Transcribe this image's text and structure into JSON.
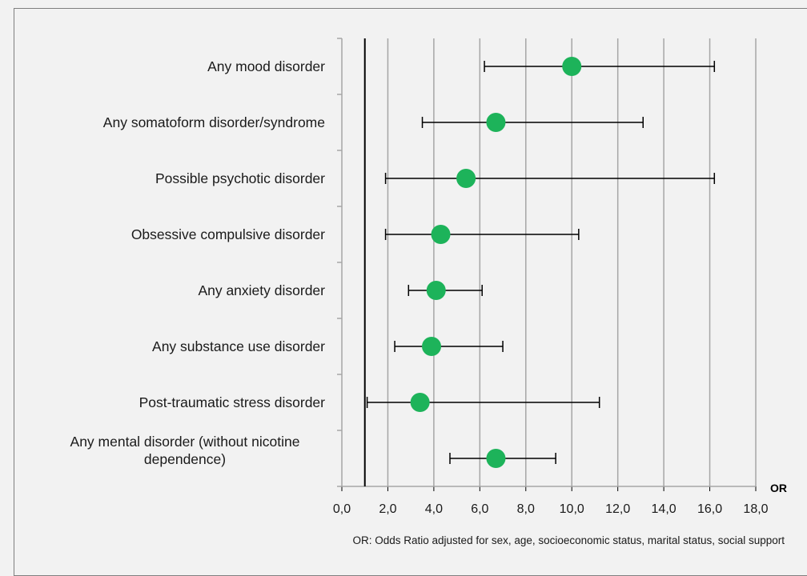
{
  "chart_data": {
    "type": "scatter",
    "subtype": "forest-plot",
    "categories": [
      "Any mood disorder",
      "Any somatoform disorder/syndrome",
      "Possible psychotic disorder",
      "Obsessive compulsive disorder",
      "Any anxiety disorder",
      "Any substance use disorder",
      "Post-traumatic stress disorder",
      "Any mental disorder (without nicotine dependence)"
    ],
    "label_lines": [
      [
        "Any mood disorder"
      ],
      [
        "Any somatoform disorder/syndrome"
      ],
      [
        "Possible psychotic disorder"
      ],
      [
        "Obsessive compulsive disorder"
      ],
      [
        "Any anxiety disorder"
      ],
      [
        "Any substance use disorder"
      ],
      [
        "Post-traumatic stress disorder"
      ],
      [
        "Any mental disorder (without nicotine",
        "dependence)"
      ]
    ],
    "estimates": [
      10.0,
      6.7,
      5.4,
      4.3,
      4.1,
      3.9,
      3.4,
      6.7
    ],
    "ci_lower": [
      6.2,
      3.5,
      1.9,
      1.9,
      2.9,
      2.3,
      1.1,
      4.7
    ],
    "ci_upper": [
      16.2,
      13.1,
      16.2,
      10.3,
      6.1,
      7.0,
      11.2,
      9.3
    ],
    "reference_line": 1.0,
    "xlim": [
      0,
      18
    ],
    "xticks": [
      0,
      2,
      4,
      6,
      8,
      10,
      12,
      14,
      16,
      18
    ],
    "xtick_labels": [
      "0,0",
      "2,0",
      "4,0",
      "6,0",
      "8,0",
      "10,0",
      "12,0",
      "14,0",
      "16,0",
      "18,0"
    ],
    "xlabel": "OR",
    "footnote": "OR: Odds Ratio adjusted for sex, age, socioeconomic status, marital status, social support",
    "grid": true,
    "colors": {
      "marker": "#1db35a",
      "grid": "#a6a6a6",
      "line": "#000000",
      "background": "#f2f2f2"
    }
  }
}
